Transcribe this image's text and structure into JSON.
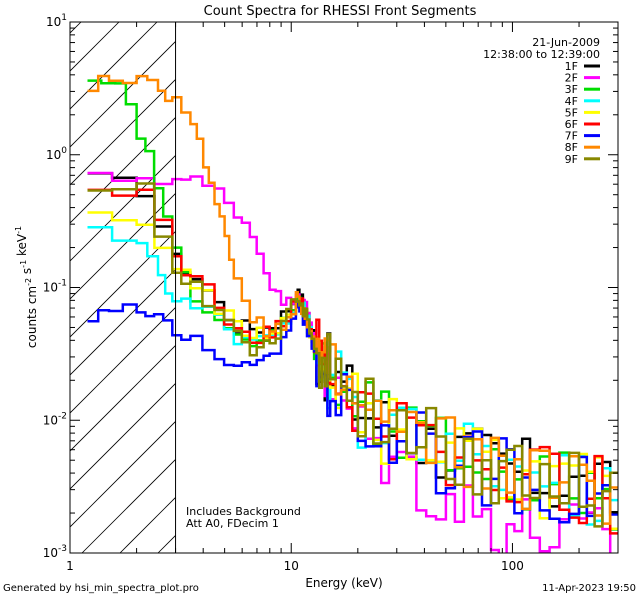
{
  "footer": {
    "generated": "Generated by hsi_min_spectra_plot.pro",
    "timestamp": "11-Apr-2023 19:50"
  },
  "chart_data": {
    "type": "line",
    "title": "Count Spectra for RHESSI Front Segments",
    "xlabel": "Energy (keV)",
    "ylabel": "counts cm^-2 s^-1 keV^-1",
    "xscale": "log",
    "yscale": "log",
    "xlim": [
      1,
      300
    ],
    "ylim": [
      0.001,
      10
    ],
    "x_tick_labels": [
      "1",
      "10",
      "100"
    ],
    "y_tick_labels": [
      {
        "base": "10",
        "exp": "-3"
      },
      {
        "base": "10",
        "exp": "-2"
      },
      {
        "base": "10",
        "exp": "-1"
      },
      {
        "base": "10",
        "exp": "0"
      },
      {
        "base": "10",
        "exp": "1"
      }
    ],
    "info_text": [
      "21-Jun-2009",
      "12:38:00 to 12:39:00"
    ],
    "annotations": [
      "Includes Background",
      "Att A0, FDecim 1"
    ],
    "excluded_region": {
      "x_from": 1.0,
      "x_to": 3.0,
      "style": "hatched"
    },
    "legend_position": "top-right",
    "series": [
      {
        "name": "1F",
        "color": "#000000",
        "x": [
          1.2,
          2.0,
          2.9,
          3.5,
          4.5,
          5.5,
          6.5,
          7.5,
          8.5,
          9.5,
          10.5,
          11.5,
          13,
          15,
          20,
          30,
          50,
          80,
          120,
          200,
          300
        ],
        "y": [
          0.65,
          0.55,
          0.16,
          0.12,
          0.075,
          0.05,
          0.05,
          0.05,
          0.055,
          0.07,
          0.09,
          0.075,
          0.032,
          0.022,
          0.012,
          0.008,
          0.006,
          0.0045,
          0.0038,
          0.003,
          0.0025
        ]
      },
      {
        "name": "2F",
        "color": "#ff00ff",
        "x": [
          1.2,
          2.0,
          2.9,
          3.5,
          4.5,
          5.5,
          6.5,
          7.5,
          8.5,
          9.5,
          10.5,
          11.5,
          13,
          15,
          20,
          30,
          50,
          80,
          120,
          200,
          300
        ],
        "y": [
          0.65,
          0.68,
          0.66,
          0.63,
          0.52,
          0.38,
          0.25,
          0.14,
          0.085,
          0.075,
          0.1,
          0.07,
          0.035,
          0.017,
          0.008,
          0.0045,
          0.0025,
          0.0018,
          0.0015,
          0.0013,
          0.0012
        ]
      },
      {
        "name": "3F",
        "color": "#00dd00",
        "x": [
          1.2,
          1.6,
          2.0,
          2.4,
          2.9,
          3.5,
          4.5,
          5.5,
          6.5,
          7.5,
          8.5,
          9.5,
          10.5,
          11.5,
          13,
          15,
          20,
          30,
          50,
          80,
          120,
          200,
          300
        ],
        "y": [
          3.2,
          3.2,
          1.5,
          0.6,
          0.18,
          0.09,
          0.06,
          0.04,
          0.035,
          0.04,
          0.05,
          0.06,
          0.085,
          0.065,
          0.025,
          0.018,
          0.011,
          0.0075,
          0.0055,
          0.0042,
          0.0036,
          0.003,
          0.0026
        ]
      },
      {
        "name": "4F",
        "color": "#00ffff",
        "x": [
          1.2,
          2.0,
          2.5,
          2.9,
          3.5,
          4.5,
          5.5,
          6.5,
          7.5,
          8.5,
          9.5,
          10.5,
          11.5,
          13,
          15,
          20,
          30,
          50,
          80,
          120,
          200,
          300
        ],
        "y": [
          0.25,
          0.24,
          0.12,
          0.075,
          0.08,
          0.055,
          0.04,
          0.04,
          0.045,
          0.05,
          0.06,
          0.08,
          0.065,
          0.028,
          0.02,
          0.011,
          0.0075,
          0.0055,
          0.0042,
          0.0036,
          0.003,
          0.0026
        ]
      },
      {
        "name": "5F",
        "color": "#ffff00",
        "x": [
          1.2,
          2.0,
          2.9,
          3.5,
          4.5,
          5.5,
          6.5,
          7.5,
          8.5,
          9.5,
          10.5,
          11.5,
          13,
          15,
          20,
          30,
          50,
          80,
          120,
          200,
          300
        ],
        "y": [
          0.32,
          0.3,
          0.15,
          0.11,
          0.07,
          0.05,
          0.045,
          0.045,
          0.05,
          0.06,
          0.08,
          0.06,
          0.028,
          0.02,
          0.011,
          0.0075,
          0.0055,
          0.0042,
          0.0036,
          0.003,
          0.0026
        ]
      },
      {
        "name": "6F",
        "color": "#ff0000",
        "x": [
          1.2,
          2.0,
          2.9,
          3.5,
          4.5,
          5.5,
          6.5,
          7.5,
          8.5,
          9.5,
          10.5,
          11.5,
          13,
          15,
          20,
          30,
          50,
          80,
          120,
          200,
          300
        ],
        "y": [
          0.62,
          0.5,
          0.16,
          0.12,
          0.075,
          0.045,
          0.042,
          0.045,
          0.05,
          0.06,
          0.085,
          0.065,
          0.03,
          0.021,
          0.012,
          0.008,
          0.006,
          0.0045,
          0.0038,
          0.003,
          0.0026
        ]
      },
      {
        "name": "7F",
        "color": "#0000ff",
        "x": [
          1.2,
          1.5,
          2.0,
          2.4,
          2.9,
          3.5,
          4.5,
          5.5,
          6.5,
          7.5,
          8.5,
          9.5,
          10.5,
          11.5,
          13,
          15,
          20,
          30,
          50,
          80,
          120,
          200,
          300
        ],
        "y": [
          0.063,
          0.073,
          0.068,
          0.055,
          0.045,
          0.04,
          0.032,
          0.025,
          0.025,
          0.028,
          0.035,
          0.05,
          0.08,
          0.055,
          0.025,
          0.018,
          0.01,
          0.007,
          0.005,
          0.0041,
          0.0035,
          0.003,
          0.0025
        ]
      },
      {
        "name": "8F",
        "color": "#ff8800",
        "x": [
          1.2,
          1.5,
          2.0,
          2.5,
          2.9,
          3.5,
          4.0,
          4.5,
          5.0,
          5.5,
          6.5,
          7.5,
          8.5,
          9.5,
          10.5,
          11.5,
          13,
          15,
          20,
          30,
          50,
          80,
          120,
          200,
          300
        ],
        "y": [
          3.4,
          3.6,
          3.5,
          3.1,
          2.7,
          1.6,
          0.9,
          0.45,
          0.25,
          0.12,
          0.06,
          0.045,
          0.05,
          0.06,
          0.085,
          0.065,
          0.03,
          0.021,
          0.012,
          0.008,
          0.006,
          0.0045,
          0.0038,
          0.003,
          0.0026
        ]
      },
      {
        "name": "9F",
        "color": "#888800",
        "x": [
          1.2,
          2.0,
          2.9,
          3.5,
          4.5,
          5.5,
          6.5,
          7.5,
          8.5,
          9.5,
          10.5,
          11.5,
          13,
          15,
          20,
          30,
          50,
          80,
          120,
          200,
          300
        ],
        "y": [
          0.6,
          0.55,
          0.13,
          0.1,
          0.065,
          0.045,
          0.035,
          0.035,
          0.045,
          0.06,
          0.085,
          0.065,
          0.03,
          0.022,
          0.012,
          0.008,
          0.006,
          0.0045,
          0.0038,
          0.003,
          0.0026
        ]
      }
    ]
  }
}
